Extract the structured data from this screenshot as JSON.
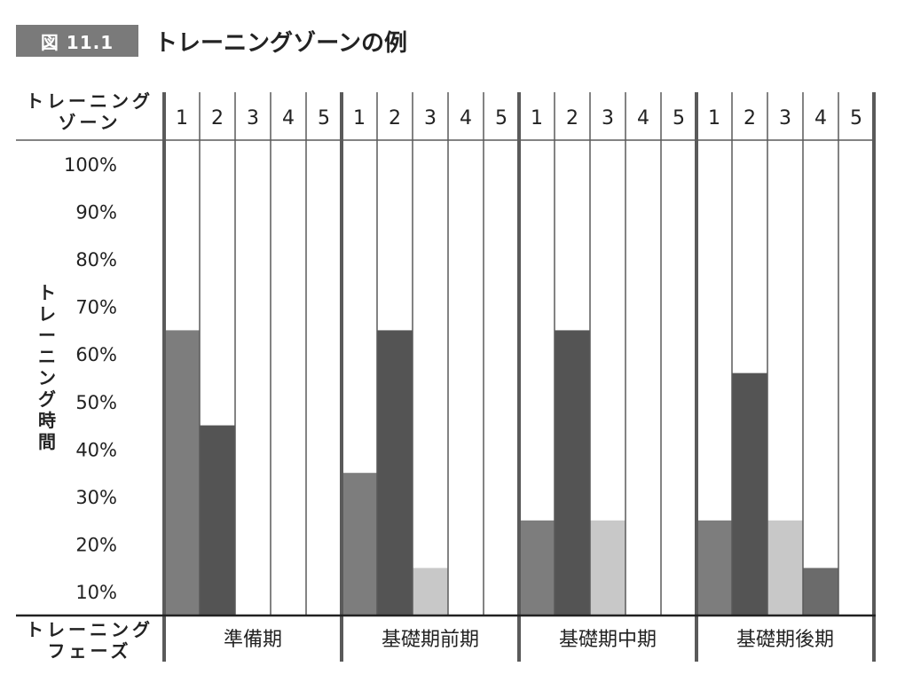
{
  "figure": {
    "tag": "図 11.1",
    "title": "トレーニングゾーンの例"
  },
  "header": {
    "zone_label_line1": "トレーニング",
    "zone_label_line2": "ゾーン",
    "phase_label_line1": "トレーニング",
    "phase_label_line2": "フェーズ"
  },
  "y_axis_label": "トレーニング時間",
  "colors": {
    "zone1": "#7d7d7d",
    "zone2": "#545454",
    "zone3": "#c8c8c8",
    "zone4": "#6b6b6b",
    "grid": "#5a5a5a",
    "text": "#222222"
  },
  "chart_data": {
    "type": "bar",
    "zones": [
      "1",
      "2",
      "3",
      "4",
      "5"
    ],
    "y_ticks": [
      "100%",
      "90%",
      "80%",
      "70%",
      "60%",
      "50%",
      "40%",
      "30%",
      "20%",
      "10%"
    ],
    "ylim": [
      5,
      105
    ],
    "ylabel": "トレーニング時間",
    "xlabel": "トレーニングフェーズ",
    "grid": true,
    "groups": [
      {
        "phase": "準備期",
        "values": [
          65,
          45,
          0,
          0,
          0
        ]
      },
      {
        "phase": "基礎期前期",
        "values": [
          35,
          65,
          15,
          0,
          0
        ]
      },
      {
        "phase": "基礎期中期",
        "values": [
          25,
          65,
          25,
          0,
          0
        ]
      },
      {
        "phase": "基礎期後期",
        "values": [
          25,
          56,
          25,
          15,
          0
        ]
      }
    ]
  }
}
